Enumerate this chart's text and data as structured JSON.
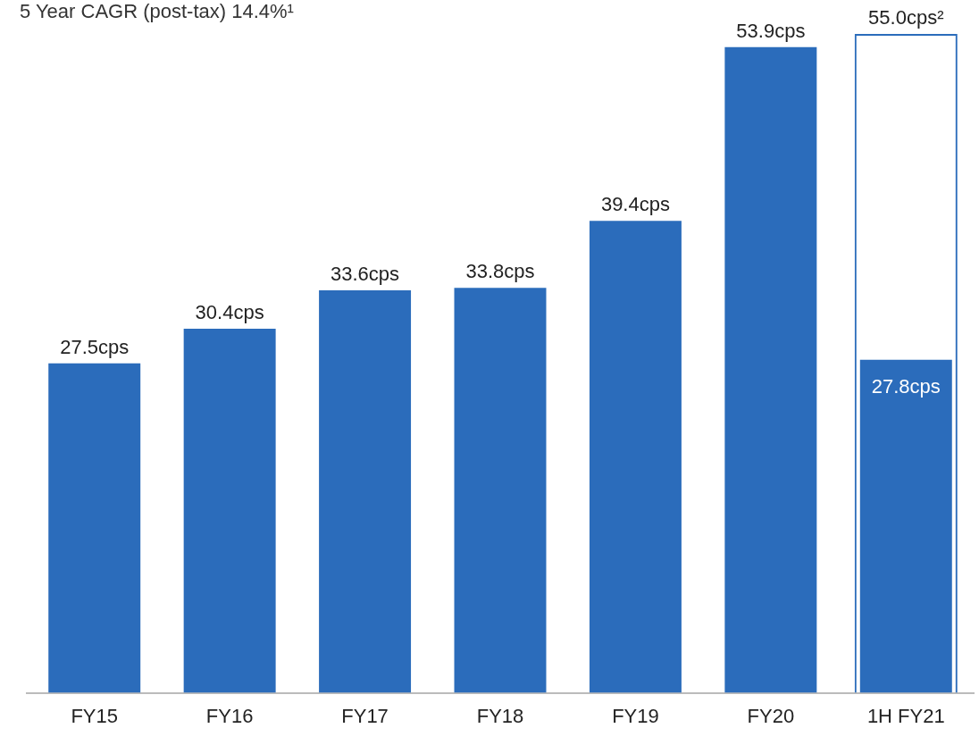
{
  "chart_data": {
    "type": "bar",
    "title": "5 Year CAGR (post-tax) 14.4%¹",
    "categories": [
      "FY15",
      "FY16",
      "FY17",
      "FY18",
      "FY19",
      "FY20",
      "1H FY21"
    ],
    "series": [
      {
        "color": "#2b6cbb",
        "values": [
          27.5,
          30.4,
          33.6,
          33.8,
          39.4,
          53.9,
          27.8
        ],
        "value_labels": [
          "27.5cps",
          "30.4cps",
          "33.6cps",
          "33.8cps",
          "39.4cps",
          "53.9cps",
          "27.8cps"
        ]
      },
      {
        "color": "#2b6cbb",
        "line_style": "dashed",
        "values": [
          null,
          null,
          null,
          null,
          null,
          null,
          55.0
        ],
        "value_labels": [
          null,
          null,
          null,
          null,
          null,
          null,
          "55.0cps²"
        ]
      }
    ],
    "legend": false,
    "grid": false
  }
}
